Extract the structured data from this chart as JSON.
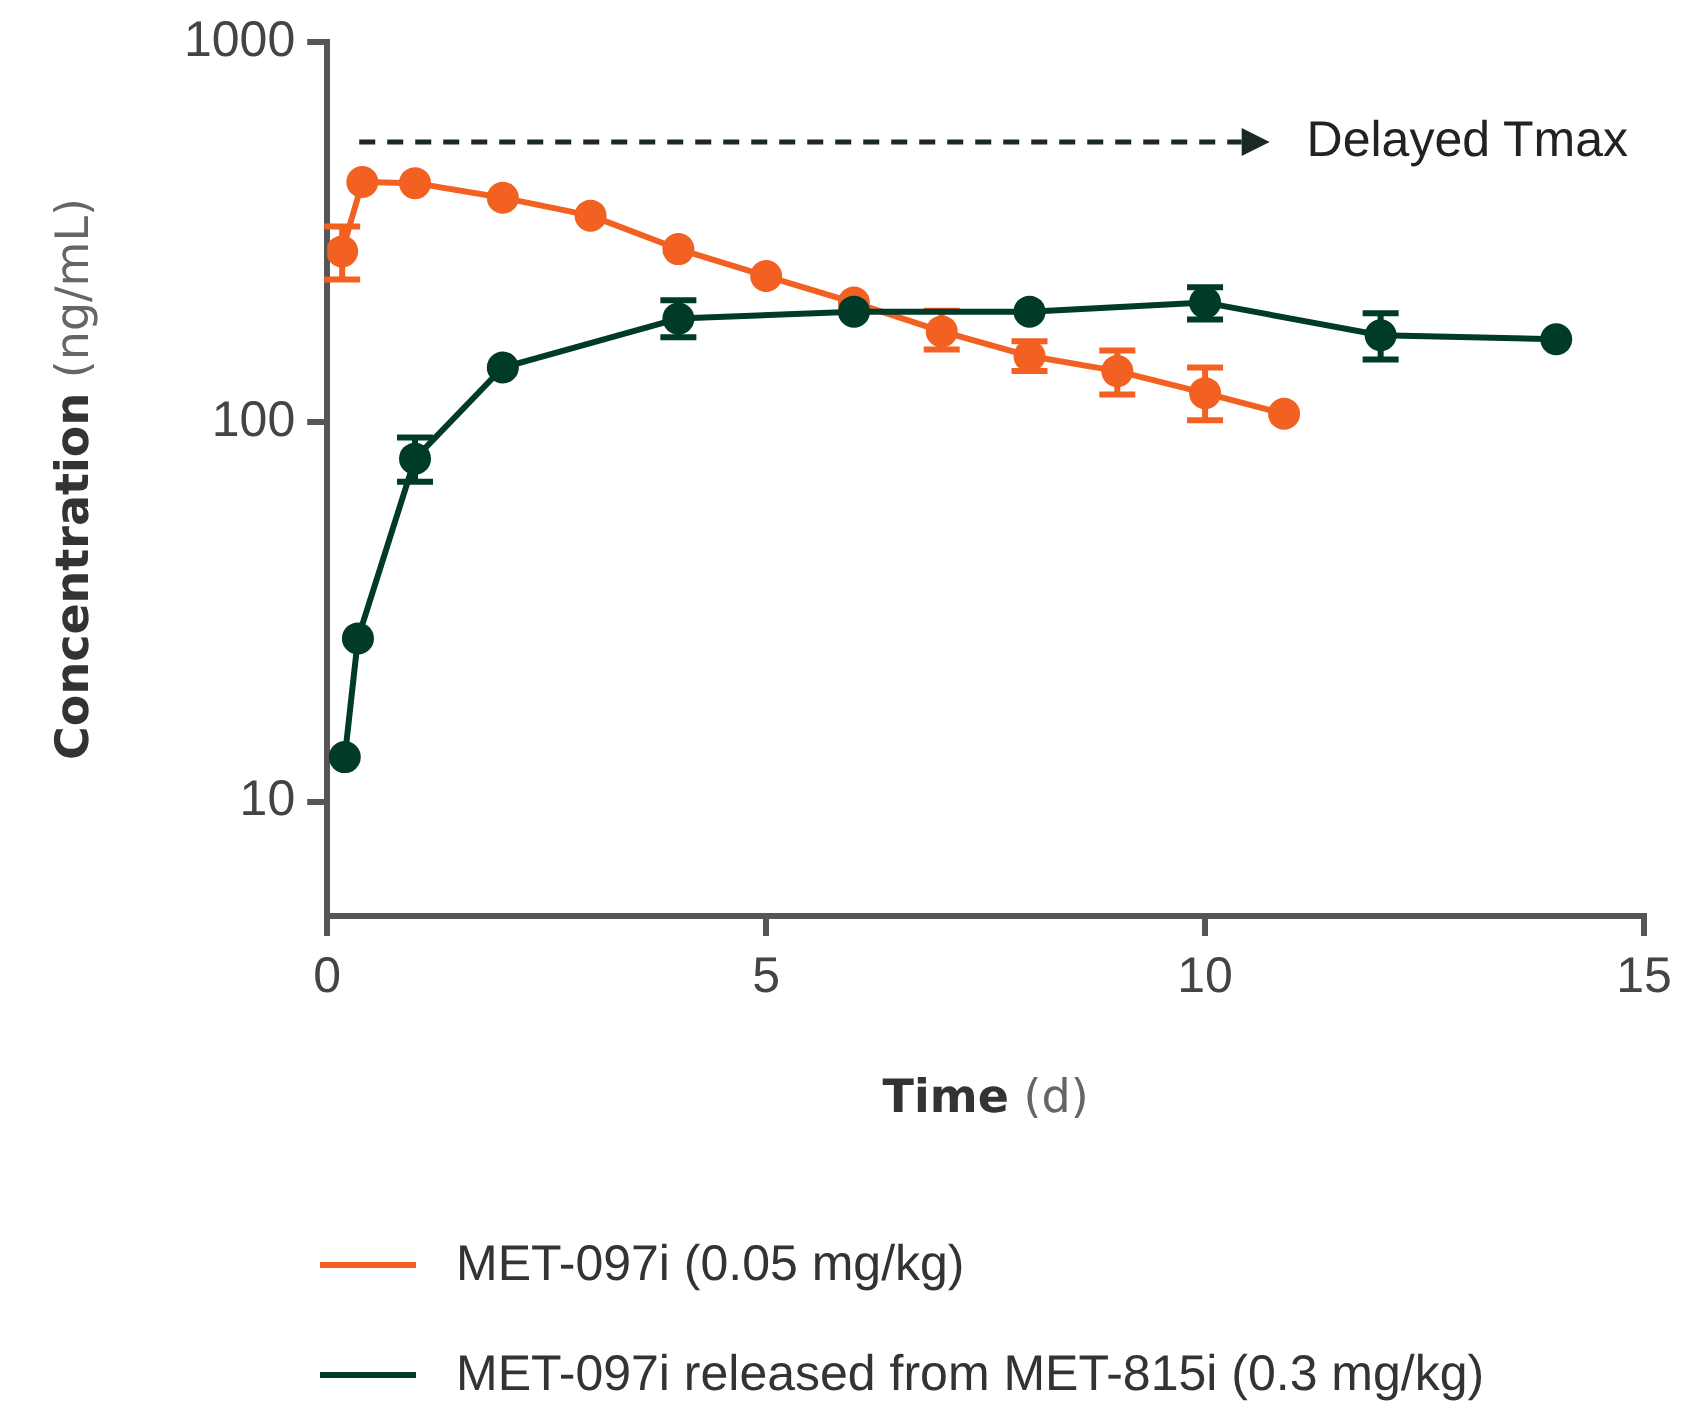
{
  "chart_data": {
    "type": "line",
    "xlabel": "Time (d)",
    "ylabel": "Concentration (ng/mL)",
    "log": "y",
    "xlim": [
      0,
      15
    ],
    "xticks": [
      0,
      5,
      10,
      15
    ],
    "ylim": [
      5,
      1000
    ],
    "yticks": [
      10,
      100,
      1000
    ],
    "grid": false,
    "legend": "bottom",
    "marker": "circle",
    "line_style": "solid",
    "annotations": [
      "Delayed Tmax"
    ],
    "series": [
      {
        "name": "MET-097i (0.05 mg/kg)",
        "color": "#f26122",
        "x": [
          0.17,
          0.4,
          1,
          2,
          3,
          4,
          5,
          6,
          7,
          8,
          9,
          10,
          10.9
        ],
        "values": [
          281,
          428,
          425,
          389,
          349,
          285,
          242,
          206,
          173,
          149,
          136,
          119,
          105
        ],
        "errors": [
          [
            237,
            327
          ],
          null,
          null,
          null,
          null,
          null,
          null,
          null,
          [
            155,
            196
          ],
          [
            136,
            163
          ],
          [
            118,
            154
          ],
          [
            101,
            139
          ],
          null
        ]
      },
      {
        "name": "MET-097i released from MET-815i (0.3 mg/kg)",
        "color": "#003a28",
        "x": [
          0.2,
          0.35,
          1,
          2,
          4,
          6,
          8,
          10,
          12,
          14
        ],
        "values": [
          13.1,
          26.9,
          80,
          139,
          187,
          195,
          195,
          206,
          169,
          165
        ],
        "errors": [
          null,
          null,
          [
            69.5,
            91
          ],
          null,
          [
            167,
            209
          ],
          null,
          null,
          [
            186,
            226
          ],
          [
            146,
            193
          ],
          null
        ]
      }
    ]
  }
}
